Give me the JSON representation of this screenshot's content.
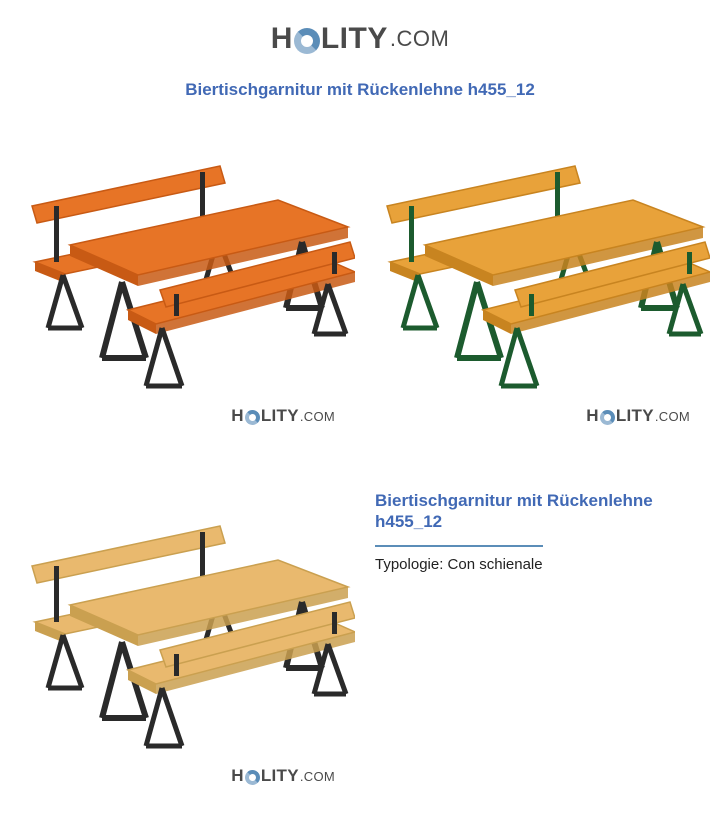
{
  "logo": {
    "left": "H",
    "right": "LITY",
    "suffix": ".COM"
  },
  "page_title": "Biertischgarnitur mit Rückenlehne h455_12",
  "details": {
    "title": "Biertischgarnitur mit Rückenlehne h455_12",
    "spec": "Typologie: Con schienale"
  },
  "variants": [
    {
      "wood_fill": "#e77426",
      "wood_stroke": "#c85a14",
      "leg_fill": "#2a2a2a",
      "leg_stroke": "#1a1a1a"
    },
    {
      "wood_fill": "#e8a23a",
      "wood_stroke": "#c88420",
      "leg_fill": "#1c5b2e",
      "leg_stroke": "#10431e"
    },
    {
      "wood_fill": "#e9b96e",
      "wood_stroke": "#caa050",
      "leg_fill": "#2a2a2a",
      "leg_stroke": "#1a1a1a"
    }
  ]
}
